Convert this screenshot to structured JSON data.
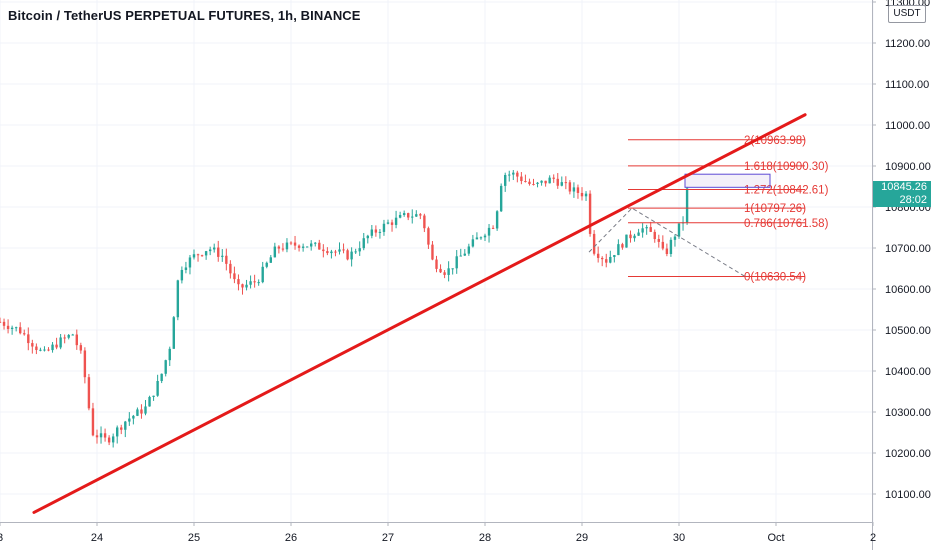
{
  "chart_data": {
    "type": "candlestick",
    "title": "Bitcoin / TetherUS PERPETUAL FUTURES, 1h, BINANCE",
    "currency": "USDT",
    "last_price": "10845.26",
    "countdown": "28:02",
    "ylim": [
      10050,
      11300
    ],
    "y_ticks": [
      "10100.00",
      "10200.00",
      "10300.00",
      "10400.00",
      "10500.00",
      "10600.00",
      "10700.00",
      "10800.00",
      "10900.00",
      "11000.00",
      "11100.00",
      "11200.00",
      "11300.00"
    ],
    "x_ticks": [
      "3",
      "24",
      "25",
      "26",
      "27",
      "28",
      "29",
      "30",
      "Oct",
      "2"
    ],
    "fib_levels": [
      {
        "label": "2(10963.98)",
        "price": 10963.98
      },
      {
        "label": "1.618(10900.30)",
        "price": 10900.3
      },
      {
        "label": "1.272(10842.61)",
        "price": 10842.61
      },
      {
        "label": "1(10797.26)",
        "price": 10797.26
      },
      {
        "label": "0.786(10761.58)",
        "price": 10761.58
      },
      {
        "label": "0(10630.54)",
        "price": 10630.54
      }
    ],
    "trendline": {
      "from": {
        "day": 23.35,
        "price": 10055
      },
      "to": {
        "day": 31.3,
        "price": 11025
      }
    },
    "colors": {
      "up": "#26a69a",
      "down": "#ef5350",
      "trendline": "#e41a1a",
      "fib": "#e53935"
    },
    "series_keypoints": [
      {
        "day": 23.0,
        "price": 10520
      },
      {
        "day": 23.2,
        "price": 10500
      },
      {
        "day": 23.45,
        "price": 10440
      },
      {
        "day": 23.6,
        "price": 10470
      },
      {
        "day": 23.75,
        "price": 10490
      },
      {
        "day": 23.85,
        "price": 10430
      },
      {
        "day": 23.95,
        "price": 10250
      },
      {
        "day": 24.1,
        "price": 10230
      },
      {
        "day": 24.3,
        "price": 10280
      },
      {
        "day": 24.5,
        "price": 10310
      },
      {
        "day": 24.65,
        "price": 10380
      },
      {
        "day": 24.75,
        "price": 10460
      },
      {
        "day": 24.85,
        "price": 10650
      },
      {
        "day": 25.0,
        "price": 10680
      },
      {
        "day": 25.15,
        "price": 10700
      },
      {
        "day": 25.3,
        "price": 10680
      },
      {
        "day": 25.45,
        "price": 10600
      },
      {
        "day": 25.65,
        "price": 10620
      },
      {
        "day": 25.85,
        "price": 10700
      },
      {
        "day": 26.1,
        "price": 10710
      },
      {
        "day": 26.35,
        "price": 10700
      },
      {
        "day": 26.6,
        "price": 10680
      },
      {
        "day": 26.8,
        "price": 10730
      },
      {
        "day": 27.0,
        "price": 10760
      },
      {
        "day": 27.2,
        "price": 10780
      },
      {
        "day": 27.35,
        "price": 10780
      },
      {
        "day": 27.45,
        "price": 10670
      },
      {
        "day": 27.6,
        "price": 10640
      },
      {
        "day": 27.75,
        "price": 10680
      },
      {
        "day": 27.95,
        "price": 10730
      },
      {
        "day": 28.1,
        "price": 10760
      },
      {
        "day": 28.18,
        "price": 10880
      },
      {
        "day": 28.3,
        "price": 10880
      },
      {
        "day": 28.5,
        "price": 10850
      },
      {
        "day": 28.7,
        "price": 10870
      },
      {
        "day": 28.9,
        "price": 10840
      },
      {
        "day": 29.05,
        "price": 10830
      },
      {
        "day": 29.1,
        "price": 10700
      },
      {
        "day": 29.25,
        "price": 10670
      },
      {
        "day": 29.45,
        "price": 10720
      },
      {
        "day": 29.6,
        "price": 10750
      },
      {
        "day": 29.75,
        "price": 10730
      },
      {
        "day": 29.85,
        "price": 10680
      },
      {
        "day": 29.95,
        "price": 10730
      },
      {
        "day": 30.05,
        "price": 10770
      },
      {
        "day": 30.1,
        "price": 10845
      }
    ]
  }
}
